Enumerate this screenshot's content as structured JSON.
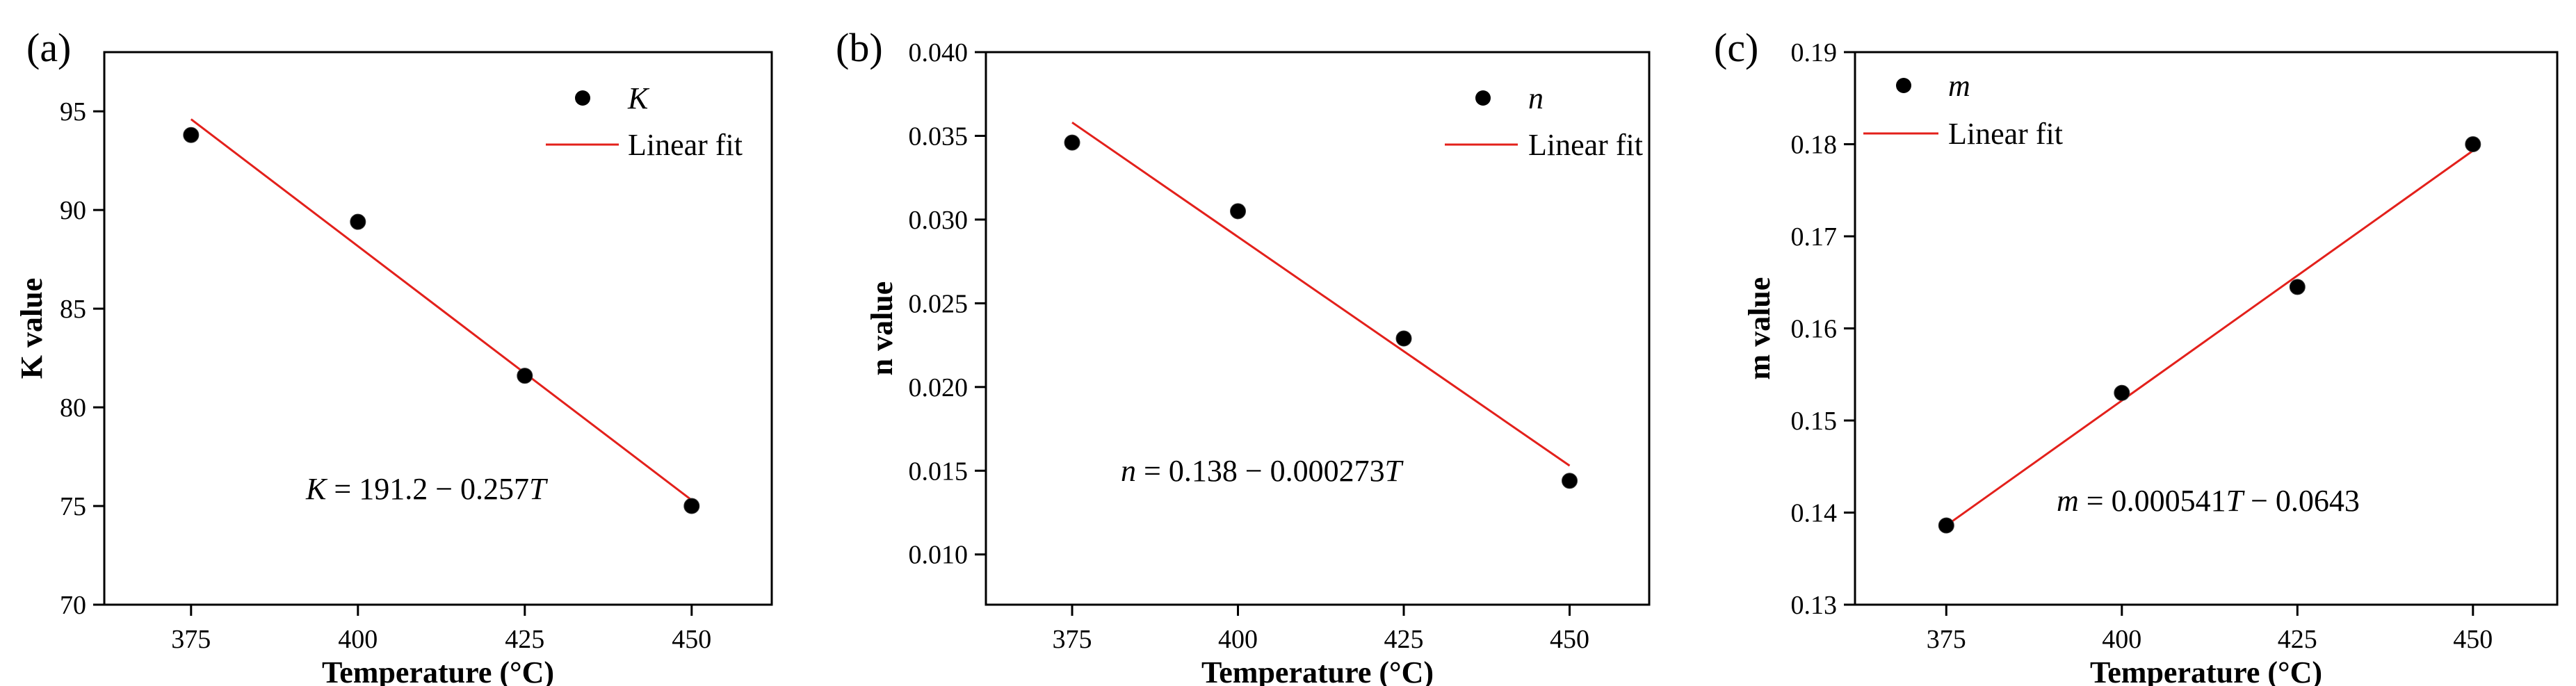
{
  "colors": {
    "fit_line": "#e3201b",
    "marker": "#000000",
    "axes": "#000000"
  },
  "chart_data": [
    {
      "type": "scatter",
      "panel_label": "(a)",
      "title": "",
      "xlabel": "Temperature (°C)",
      "ylabel": "K value",
      "xlim": [
        362,
        462
      ],
      "ylim": [
        70,
        98
      ],
      "xticks": [
        375,
        400,
        425,
        450
      ],
      "xtick_labels": [
        "375",
        "400",
        "425",
        "450"
      ],
      "yticks": [
        70,
        75,
        80,
        85,
        90,
        95
      ],
      "ytick_labels": [
        "70",
        "75",
        "80",
        "85",
        "90",
        "95"
      ],
      "grid": false,
      "legend_position": "top-right",
      "series": [
        {
          "name": "K",
          "kind": "scatter",
          "x": [
            375,
            400,
            425,
            450
          ],
          "y": [
            93.8,
            89.4,
            81.6,
            75.0
          ]
        },
        {
          "name": "Linear fit",
          "kind": "line",
          "x": [
            375,
            450
          ],
          "y": [
            94.6,
            75.3
          ]
        }
      ],
      "equation": {
        "lhs": "K",
        "op": " = ",
        "rhs": "191.2 − 0.257",
        "var": "T"
      }
    },
    {
      "type": "scatter",
      "panel_label": "(b)",
      "title": "",
      "xlabel": "Temperature (°C)",
      "ylabel": "n value",
      "xlim": [
        362,
        462
      ],
      "ylim": [
        0.007,
        0.04
      ],
      "xticks": [
        375,
        400,
        425,
        450
      ],
      "xtick_labels": [
        "375",
        "400",
        "425",
        "450"
      ],
      "yticks": [
        0.01,
        0.015,
        0.02,
        0.025,
        0.03,
        0.035,
        0.04
      ],
      "ytick_labels": [
        "0.010",
        "0.015",
        "0.020",
        "0.025",
        "0.030",
        "0.035",
        "0.040"
      ],
      "grid": false,
      "legend_position": "top-right",
      "series": [
        {
          "name": "n",
          "kind": "scatter",
          "x": [
            375,
            400,
            425,
            450
          ],
          "y": [
            0.0346,
            0.0305,
            0.0229,
            0.0144
          ]
        },
        {
          "name": "Linear fit",
          "kind": "line",
          "x": [
            375,
            450
          ],
          "y": [
            0.0358,
            0.0153
          ]
        }
      ],
      "equation": {
        "lhs": "n",
        "op": " = ",
        "rhs": "0.138 − 0.000273",
        "var": "T"
      }
    },
    {
      "type": "scatter",
      "panel_label": "(c)",
      "title": "",
      "xlabel": "Temperature (°C)",
      "ylabel": "m value",
      "xlim": [
        362,
        462
      ],
      "ylim": [
        0.13,
        0.19
      ],
      "xticks": [
        375,
        400,
        425,
        450
      ],
      "xtick_labels": [
        "375",
        "400",
        "425",
        "450"
      ],
      "yticks": [
        0.13,
        0.14,
        0.15,
        0.16,
        0.17,
        0.18,
        0.19
      ],
      "ytick_labels": [
        "0.13",
        "0.14",
        "0.15",
        "0.16",
        "0.17",
        "0.18",
        "0.19"
      ],
      "grid": false,
      "legend_position": "top-left",
      "series": [
        {
          "name": "m",
          "kind": "scatter",
          "x": [
            375,
            400,
            425,
            450
          ],
          "y": [
            0.1386,
            0.153,
            0.1645,
            0.18
          ]
        },
        {
          "name": "Linear fit",
          "kind": "line",
          "x": [
            375,
            450
          ],
          "y": [
            0.1386,
            0.1793
          ]
        }
      ],
      "equation": {
        "lhs": "m",
        "op": " = 0.000541",
        "rhs": "",
        "var": "T",
        "suffix": " − 0.0643"
      }
    }
  ]
}
